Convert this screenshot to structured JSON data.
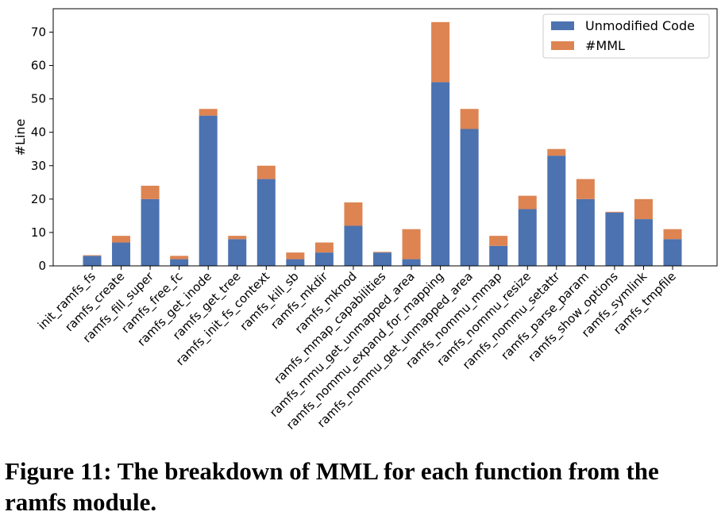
{
  "chart_data": {
    "type": "bar",
    "stacked": true,
    "categories": [
      "init_ramfs_fs",
      "ramfs_create",
      "ramfs_fill_super",
      "ramfs_free_fc",
      "ramfs_get_inode",
      "ramfs_get_tree",
      "ramfs_init_fs_context",
      "ramfs_kill_sb",
      "ramfs_mkdir",
      "ramfs_mknod",
      "ramfs_mmap_capabilities",
      "ramfs_mmu_get_unmapped_area",
      "ramfs_nommu_expand_for_mapping",
      "ramfs_nommu_get_unmapped_area",
      "ramfs_nommu_mmap",
      "ramfs_nommu_resize",
      "ramfs_nommu_setattr",
      "ramfs_parse_param",
      "ramfs_show_options",
      "ramfs_symlink",
      "ramfs_tmpfile"
    ],
    "series": [
      {
        "name": "Unmodified Code",
        "color": "#4c72b0",
        "values": [
          3,
          7,
          20,
          2,
          45,
          8,
          26,
          2,
          4,
          12,
          4,
          2,
          55,
          41,
          6,
          17,
          33,
          20,
          16,
          14,
          8
        ]
      },
      {
        "name": "#MML",
        "color": "#dd8452",
        "values": [
          0.2,
          2,
          4,
          1,
          2,
          1,
          4,
          2,
          3,
          7,
          0.2,
          9,
          18,
          6,
          3,
          4,
          2,
          6,
          0.2,
          6,
          3
        ]
      }
    ],
    "ylabel": "#Line",
    "xlabel": "",
    "ylim": [
      0,
      77
    ],
    "yticks": [
      0,
      10,
      20,
      30,
      40,
      50,
      60,
      70
    ],
    "grid": false,
    "legend_position": "top-right"
  },
  "caption": "Figure 11: The breakdown of MML for each function from the ramfs module."
}
